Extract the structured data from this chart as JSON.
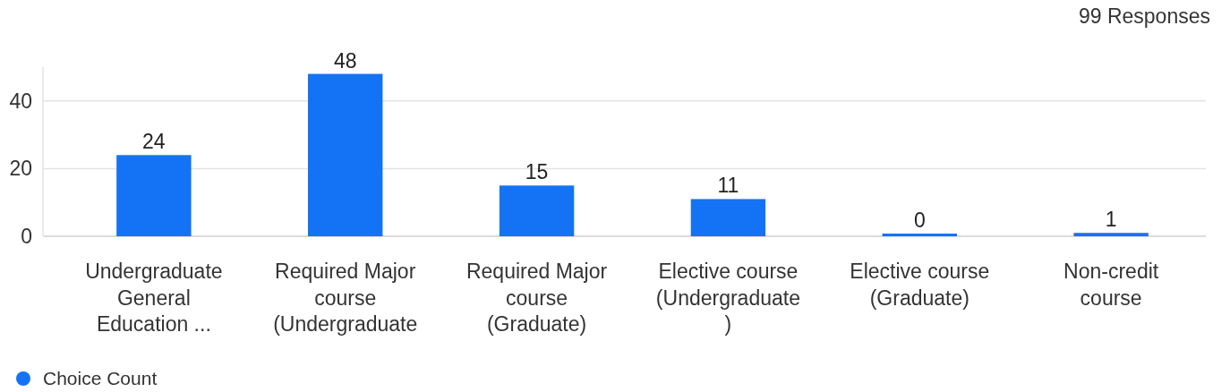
{
  "chart_data": {
    "type": "bar",
    "categories": [
      "Undergraduate\nGeneral\nEducation ...",
      "Required Major\ncourse\n(Undergraduate",
      "Required Major\ncourse\n(Graduate)",
      "Elective course\n(Undergraduate\n)",
      "Elective course\n(Graduate)",
      "Non-credit\ncourse"
    ],
    "series": [
      {
        "name": "Choice Count",
        "color": "#1473f5",
        "values": [
          24,
          48,
          15,
          11,
          0,
          1
        ]
      }
    ],
    "ylim": [
      0,
      50
    ],
    "yticks": [
      0,
      20,
      40
    ],
    "grid": "y",
    "data_labels": true,
    "legend": "bottom left",
    "marker": "circle",
    "annotations": [
      "99 Responses"
    ]
  }
}
